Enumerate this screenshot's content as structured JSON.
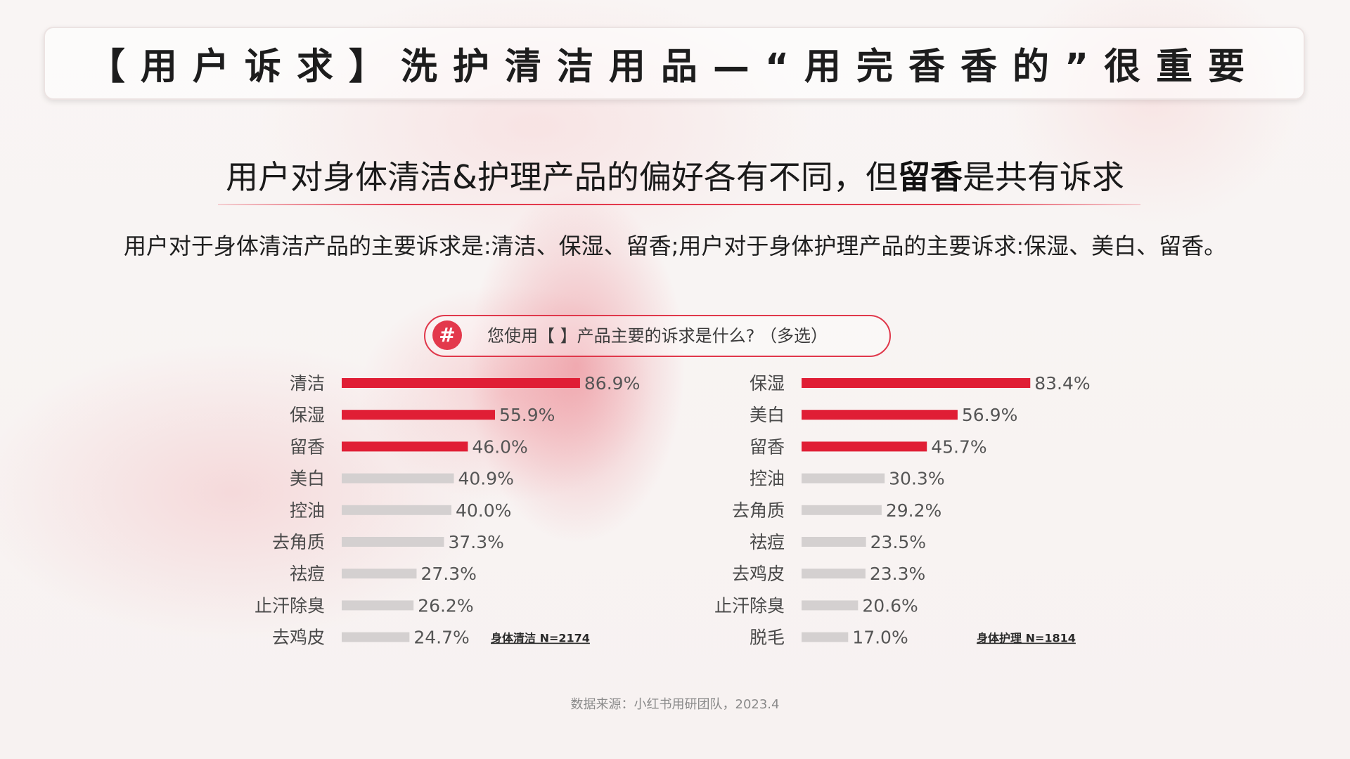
{
  "title": "【用户诉求】洗护清洁用品—“用完香香的”很重要",
  "subtitle": {
    "before": "用户对身体清洁&护理产品的偏好各有不同，但",
    "bold": "留香",
    "after": "是共有诉求"
  },
  "description": "用户对于身体清洁产品的主要诉求是:清洁、保湿、留香;用户对于身体护理产品的主要诉求:保湿、美白、留香。",
  "question": {
    "icon": "#",
    "text": "您使用【 】产品主要的诉求是什么? （多选）"
  },
  "colors": {
    "highlight": "#e01e35",
    "muted": "#d4d0d0",
    "accent": "#e3394c"
  },
  "chart_data": [
    {
      "type": "bar",
      "orientation": "horizontal",
      "categories": [
        "清洁",
        "保湿",
        "留香",
        "美白",
        "控油",
        "去角质",
        "祛痘",
        "止汗除臭",
        "去鸡皮"
      ],
      "values": [
        86.9,
        55.9,
        46.0,
        40.9,
        40.0,
        37.3,
        27.3,
        26.2,
        24.7
      ],
      "value_labels": [
        "86.9%",
        "55.9%",
        "46.0%",
        "40.9%",
        "40.0%",
        "37.3%",
        "27.3%",
        "26.2%",
        "24.7%"
      ],
      "highlighted_top": 3,
      "note": "身体清洁 N=2174",
      "xlim": [
        0,
        100
      ]
    },
    {
      "type": "bar",
      "orientation": "horizontal",
      "categories": [
        "保湿",
        "美白",
        "留香",
        "控油",
        "去角质",
        "祛痘",
        "去鸡皮",
        "止汗除臭",
        "脱毛"
      ],
      "values": [
        83.4,
        56.9,
        45.7,
        30.3,
        29.2,
        23.5,
        23.3,
        20.6,
        17.0
      ],
      "value_labels": [
        "83.4%",
        "56.9%",
        "45.7%",
        "30.3%",
        "29.2%",
        "23.5%",
        "23.3%",
        "20.6%",
        "17.0%"
      ],
      "highlighted_top": 3,
      "note": "身体护理 N=1814",
      "xlim": [
        0,
        100
      ]
    }
  ],
  "source": "数据来源：小红书用研团队，2023.4"
}
